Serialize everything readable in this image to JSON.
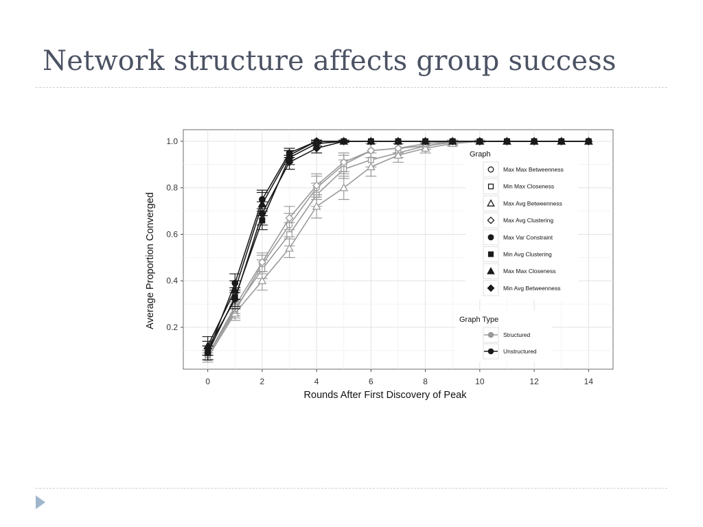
{
  "slide": {
    "title": "Network structure affects group success"
  },
  "chart_data": {
    "type": "line",
    "xlabel": "Rounds After First Discovery of Peak",
    "ylabel": "Average Proportion Converged",
    "xlim": [
      -0.9,
      14.9
    ],
    "ylim": [
      0.02,
      1.05
    ],
    "x_ticks": [
      0,
      2,
      4,
      6,
      8,
      10,
      12,
      14
    ],
    "y_ticks": [
      0.2,
      0.4,
      0.6,
      0.8,
      1.0
    ],
    "grid": true,
    "legend_placement": "right-inside",
    "x": [
      0,
      1,
      2,
      3,
      4,
      5,
      6,
      7,
      8,
      9,
      10,
      11,
      12,
      13,
      14
    ],
    "legend_graph": {
      "title": "Graph",
      "entries": [
        {
          "label": "Max Max Betweenness",
          "shape": "circle-open"
        },
        {
          "label": "Min Max Closeness",
          "shape": "square-open"
        },
        {
          "label": "Max Avg Betweenness",
          "shape": "triangle-open"
        },
        {
          "label": "Max Avg Clustering",
          "shape": "diamond-open"
        },
        {
          "label": "Max Var Constraint",
          "shape": "circle-filled"
        },
        {
          "label": "Min Avg Clustering",
          "shape": "square-filled"
        },
        {
          "label": "Max Max Closeness",
          "shape": "triangle-filled"
        },
        {
          "label": "Min Avg Betweenness",
          "shape": "diamond-filled"
        }
      ]
    },
    "legend_type": {
      "title": "Graph Type",
      "entries": [
        {
          "label": "Structured",
          "color": "#9a9a9a"
        },
        {
          "label": "Unstructured",
          "color": "#1a1a1a"
        }
      ]
    },
    "series": [
      {
        "graph": "Max Max Betweenness",
        "type": "Structured",
        "shape": "circle-open",
        "values": [
          0.08,
          0.27,
          0.47,
          0.64,
          0.8,
          0.9,
          0.96,
          0.97,
          0.98,
          0.995,
          1.0,
          1.0,
          1.0,
          1.0,
          1.0
        ],
        "errors": [
          0.02,
          0.03,
          0.04,
          0.05,
          0.05,
          0.04,
          0.03,
          0.02,
          0.015,
          0.01,
          0.005,
          0,
          0,
          0,
          0
        ]
      },
      {
        "graph": "Min Max Closeness",
        "type": "Structured",
        "shape": "square-open",
        "values": [
          0.08,
          0.28,
          0.45,
          0.6,
          0.77,
          0.88,
          0.92,
          0.95,
          0.98,
          1.0,
          1.0,
          1.0,
          1.0,
          1.0,
          1.0
        ],
        "errors": [
          0.02,
          0.03,
          0.04,
          0.05,
          0.05,
          0.04,
          0.03,
          0.02,
          0.015,
          0.005,
          0,
          0,
          0,
          0,
          0
        ]
      },
      {
        "graph": "Max Avg Betweenness",
        "type": "Structured",
        "shape": "triangle-open",
        "values": [
          0.07,
          0.26,
          0.4,
          0.54,
          0.72,
          0.8,
          0.89,
          0.94,
          0.97,
          0.99,
          1.0,
          1.0,
          1.0,
          1.0,
          1.0
        ],
        "errors": [
          0.02,
          0.03,
          0.04,
          0.04,
          0.05,
          0.05,
          0.04,
          0.03,
          0.02,
          0.01,
          0.005,
          0,
          0,
          0,
          0
        ]
      },
      {
        "graph": "Max Avg Clustering",
        "type": "Structured",
        "shape": "diamond-open",
        "values": [
          0.08,
          0.29,
          0.48,
          0.67,
          0.81,
          0.91,
          0.96,
          0.97,
          0.99,
          1.0,
          1.0,
          1.0,
          1.0,
          1.0,
          1.0
        ],
        "errors": [
          0.02,
          0.03,
          0.04,
          0.05,
          0.05,
          0.04,
          0.03,
          0.02,
          0.01,
          0.005,
          0,
          0,
          0,
          0,
          0
        ]
      },
      {
        "graph": "Max Var Constraint",
        "type": "Unstructured",
        "shape": "circle-filled",
        "values": [
          0.09,
          0.39,
          0.75,
          0.95,
          1.0,
          1.0,
          1.0,
          1.0,
          1.0,
          1.0,
          1.0,
          1.0,
          1.0,
          1.0,
          1.0
        ],
        "errors": [
          0.03,
          0.04,
          0.04,
          0.02,
          0.005,
          0,
          0,
          0,
          0,
          0,
          0,
          0,
          0,
          0,
          0
        ]
      },
      {
        "graph": "Min Avg Clustering",
        "type": "Unstructured",
        "shape": "square-filled",
        "values": [
          0.09,
          0.33,
          0.66,
          0.93,
          0.99,
          1.0,
          1.0,
          1.0,
          1.0,
          1.0,
          1.0,
          1.0,
          1.0,
          1.0,
          1.0
        ],
        "errors": [
          0.03,
          0.04,
          0.04,
          0.03,
          0.01,
          0,
          0,
          0,
          0,
          0,
          0,
          0,
          0,
          0,
          0
        ]
      },
      {
        "graph": "Max Max Closeness",
        "type": "Unstructured",
        "shape": "triangle-filled",
        "values": [
          0.12,
          0.36,
          0.73,
          0.94,
          1.0,
          1.0,
          1.0,
          1.0,
          1.0,
          1.0,
          1.0,
          1.0,
          1.0,
          1.0,
          1.0
        ],
        "errors": [
          0.04,
          0.04,
          0.05,
          0.02,
          0.005,
          0,
          0,
          0,
          0,
          0,
          0,
          0,
          0,
          0,
          0
        ]
      },
      {
        "graph": "Min Avg Betweenness",
        "type": "Unstructured",
        "shape": "diamond-filled",
        "values": [
          0.11,
          0.32,
          0.69,
          0.91,
          0.97,
          1.0,
          1.0,
          1.0,
          1.0,
          1.0,
          1.0,
          1.0,
          1.0,
          1.0,
          1.0
        ],
        "errors": [
          0.03,
          0.04,
          0.05,
          0.03,
          0.02,
          0.005,
          0,
          0,
          0,
          0,
          0,
          0,
          0,
          0,
          0
        ]
      }
    ]
  }
}
